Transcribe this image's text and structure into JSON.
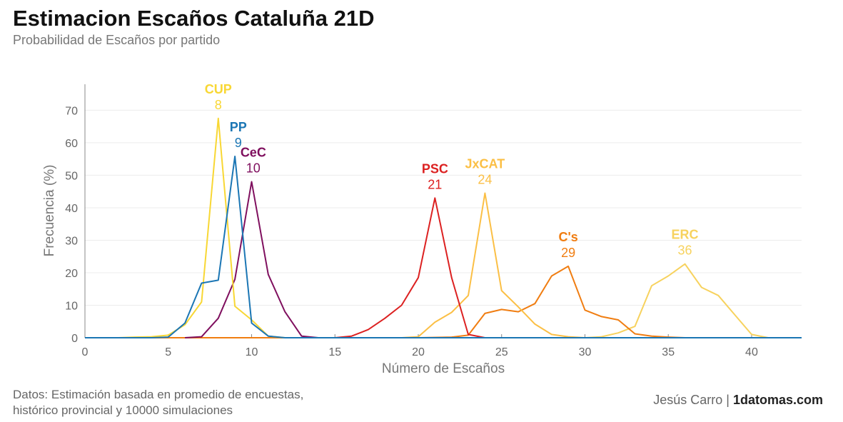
{
  "title": "Estimacion Escaños Cataluña 21D",
  "subtitle": "Probabilidad de Escaños por partido",
  "footer": {
    "source_line1": "Datos: Estimación basada en promedio de encuestas,",
    "source_line2": "histórico provincial y 10000 simulaciones",
    "author": "Jesús Carro",
    "separator": "|",
    "site": "1datomas.com"
  },
  "chart_data": {
    "type": "line",
    "xlabel": "Número de Escaños",
    "ylabel": "Frecuencia (%)",
    "xlim": [
      0,
      43
    ],
    "ylim": [
      0,
      78
    ],
    "xticks": [
      0,
      5,
      10,
      15,
      20,
      25,
      30,
      35,
      40
    ],
    "yticks": [
      0,
      10,
      20,
      30,
      40,
      50,
      60,
      70
    ],
    "grid": "horizontal",
    "series": [
      {
        "name": "ERC",
        "peak": "36",
        "color": "#f7d25e",
        "x": [
          28,
          29,
          30,
          31,
          32,
          33,
          34,
          35,
          36,
          37,
          38,
          39,
          40,
          41,
          42,
          43
        ],
        "y": [
          0,
          0,
          0,
          0.3,
          1.5,
          3.5,
          16,
          19,
          22.7,
          15.5,
          13,
          7,
          1,
          0,
          0,
          0
        ]
      },
      {
        "name": "C's",
        "peak": "29",
        "color": "#f07d11",
        "x": [
          0,
          10,
          20,
          22,
          23,
          24,
          25,
          26,
          27,
          28,
          29,
          30,
          31,
          32,
          33,
          34,
          35,
          36,
          43
        ],
        "y": [
          0,
          0,
          0,
          0.2,
          0.8,
          7.5,
          8.7,
          8,
          10.5,
          19,
          22,
          8.5,
          6.5,
          5.5,
          1.2,
          0.5,
          0.2,
          0,
          0
        ]
      },
      {
        "name": "JxCAT",
        "peak": "24",
        "color": "#fbbf45",
        "x": [
          19,
          20,
          21,
          22,
          23,
          24,
          25,
          26,
          27,
          28,
          29,
          30,
          31,
          43
        ],
        "y": [
          0,
          0.3,
          4.8,
          7.8,
          13,
          44.5,
          14.5,
          9.5,
          4.2,
          1,
          0.3,
          0,
          0,
          0
        ]
      },
      {
        "name": "PSC",
        "peak": "21",
        "color": "#dc2121",
        "x": [
          15,
          16,
          17,
          18,
          19,
          20,
          21,
          22,
          23,
          24,
          25,
          26,
          43
        ],
        "y": [
          0,
          0.5,
          2.5,
          6,
          10,
          18.5,
          43,
          18.5,
          1,
          0,
          0,
          0,
          0
        ]
      },
      {
        "name": "CeC",
        "peak": "10",
        "color": "#7f0f5e",
        "x": [
          6,
          7,
          8,
          9,
          10,
          11,
          12,
          13,
          14,
          15,
          43
        ],
        "y": [
          0,
          0.3,
          6,
          18,
          48,
          19.5,
          8,
          0.5,
          0,
          0,
          0
        ]
      },
      {
        "name": "CUP",
        "peak": "8",
        "color": "#f8d734",
        "x": [
          0,
          2,
          3,
          4,
          5,
          6,
          7,
          8,
          9,
          10,
          11,
          12,
          13,
          43
        ],
        "y": [
          0,
          0,
          0.2,
          0.3,
          0.8,
          4,
          11,
          67.5,
          9.7,
          5.5,
          0.5,
          0,
          0,
          0
        ]
      },
      {
        "name": "PP",
        "peak": "9",
        "color": "#1b76b4",
        "x": [
          0,
          4,
          5,
          6,
          7,
          8,
          9,
          10,
          11,
          12,
          13,
          43
        ],
        "y": [
          0,
          0,
          0.2,
          4.5,
          16.8,
          17.7,
          55.8,
          4.5,
          0.5,
          0,
          0,
          0
        ]
      }
    ],
    "annotations": [
      {
        "party": "CUP",
        "seats": "8",
        "color": "#f8d734",
        "x": 8,
        "y": 67.5
      },
      {
        "party": "PP",
        "seats": "9",
        "color": "#1b76b4",
        "x": 9.2,
        "y": 55.8
      },
      {
        "party": "CeC",
        "seats": "10",
        "color": "#7f0f5e",
        "x": 10.1,
        "y": 48
      },
      {
        "party": "PSC",
        "seats": "21",
        "color": "#dc2121",
        "x": 21,
        "y": 43
      },
      {
        "party": "JxCAT",
        "seats": "24",
        "color": "#fbbf45",
        "x": 24,
        "y": 44.5
      },
      {
        "party": "C's",
        "seats": "29",
        "color": "#f07d11",
        "x": 29,
        "y": 22
      },
      {
        "party": "ERC",
        "seats": "36",
        "color": "#f7d25e",
        "x": 36,
        "y": 22.7
      }
    ]
  }
}
